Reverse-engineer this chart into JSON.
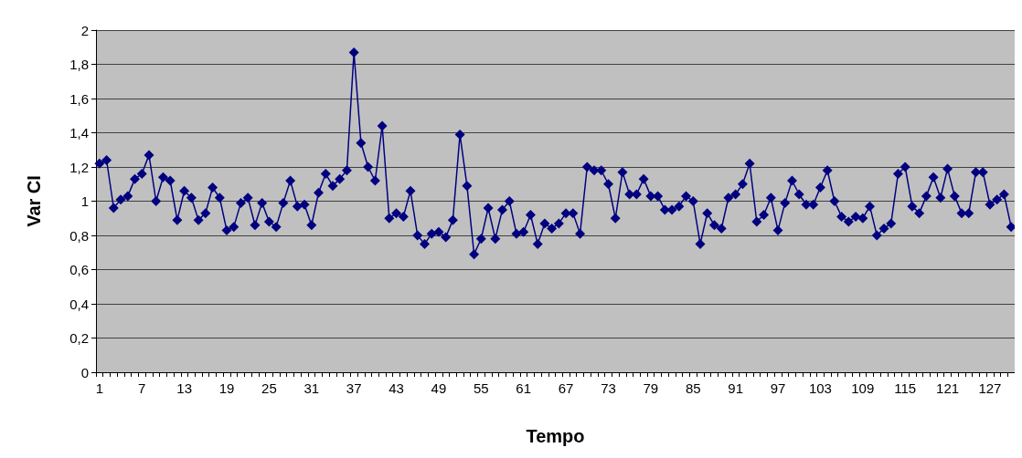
{
  "chart_data": {
    "type": "line",
    "xlabel": "Tempo",
    "ylabel": "Var CI",
    "categories": [
      "1",
      null,
      null,
      null,
      null,
      null,
      "7",
      null,
      null,
      null,
      null,
      null,
      "13",
      null,
      null,
      null,
      null,
      null,
      "19",
      null,
      null,
      null,
      null,
      null,
      "25",
      null,
      null,
      null,
      null,
      null,
      "31",
      null,
      null,
      null,
      null,
      null,
      "37",
      null,
      null,
      null,
      null,
      null,
      "43",
      null,
      null,
      null,
      null,
      null,
      "49",
      null,
      null,
      null,
      null,
      null,
      "55",
      null,
      null,
      null,
      null,
      null,
      "61",
      null,
      null,
      null,
      null,
      null,
      "67",
      null,
      null,
      null,
      null,
      null,
      "73",
      null,
      null,
      null,
      null,
      null,
      "79",
      null,
      null,
      null,
      null,
      null,
      "85",
      null,
      null,
      null,
      null,
      null,
      "91",
      null,
      null,
      null,
      null,
      null,
      "97",
      null,
      null,
      null,
      null,
      null,
      "103",
      null,
      null,
      null,
      null,
      null,
      "109",
      null,
      null,
      null,
      null,
      null,
      "115",
      null,
      null,
      null,
      null,
      null,
      "121",
      null,
      null,
      null,
      null,
      null,
      "127",
      null,
      null,
      null
    ],
    "series": [
      {
        "color": "#000080",
        "values": [
          1.22,
          1.24,
          0.96,
          1.01,
          1.03,
          1.13,
          1.16,
          1.27,
          1.0,
          1.14,
          1.12,
          0.89,
          1.06,
          1.02,
          0.89,
          0.93,
          1.08,
          1.02,
          0.83,
          0.85,
          0.99,
          1.02,
          0.86,
          0.99,
          0.88,
          0.85,
          0.99,
          1.12,
          0.97,
          0.98,
          0.86,
          1.05,
          1.16,
          1.09,
          1.13,
          1.18,
          1.87,
          1.34,
          1.2,
          1.12,
          1.44,
          0.9,
          0.93,
          0.91,
          1.06,
          0.8,
          0.75,
          0.81,
          0.82,
          0.79,
          0.89,
          1.39,
          1.09,
          0.69,
          0.78,
          0.96,
          0.78,
          0.95,
          1.0,
          0.81,
          0.82,
          0.92,
          0.75,
          0.87,
          0.84,
          0.87,
          0.93,
          0.93,
          0.81,
          1.2,
          1.18,
          1.18,
          1.1,
          0.9,
          1.17,
          1.04,
          1.04,
          1.13,
          1.03,
          1.03,
          0.95,
          0.95,
          0.97,
          1.03,
          1.0,
          0.75,
          0.93,
          0.86,
          0.84,
          1.02,
          1.04,
          1.1,
          1.22,
          0.88,
          0.92,
          1.02,
          0.83,
          0.99,
          1.12,
          1.04,
          0.98,
          0.98,
          1.08,
          1.18,
          1.0,
          0.91,
          0.88,
          0.91,
          0.9,
          0.97,
          0.8,
          0.84,
          0.87,
          1.16,
          1.2,
          0.97,
          0.93,
          1.03,
          1.14,
          1.02,
          1.19,
          1.03,
          0.93,
          0.93,
          1.17,
          1.17,
          0.98,
          1.01,
          1.04,
          0.85
        ]
      }
    ],
    "ylim": [
      0,
      2
    ],
    "yticks": [
      0,
      {
        "value": 0.2,
        "label": "0,2"
      },
      {
        "value": 0.4,
        "label": "0,4"
      },
      {
        "value": 0.6,
        "label": "0,6"
      },
      {
        "value": 0.8,
        "label": "0,8"
      },
      1,
      {
        "value": 1.2,
        "label": "1,2"
      },
      {
        "value": 1.4,
        "label": "1,4"
      },
      {
        "value": 1.6,
        "label": "1,6"
      },
      {
        "value": 1.8,
        "label": "1,8"
      },
      2
    ],
    "grid": "y",
    "marker": "diamond",
    "line_style": "solid"
  }
}
